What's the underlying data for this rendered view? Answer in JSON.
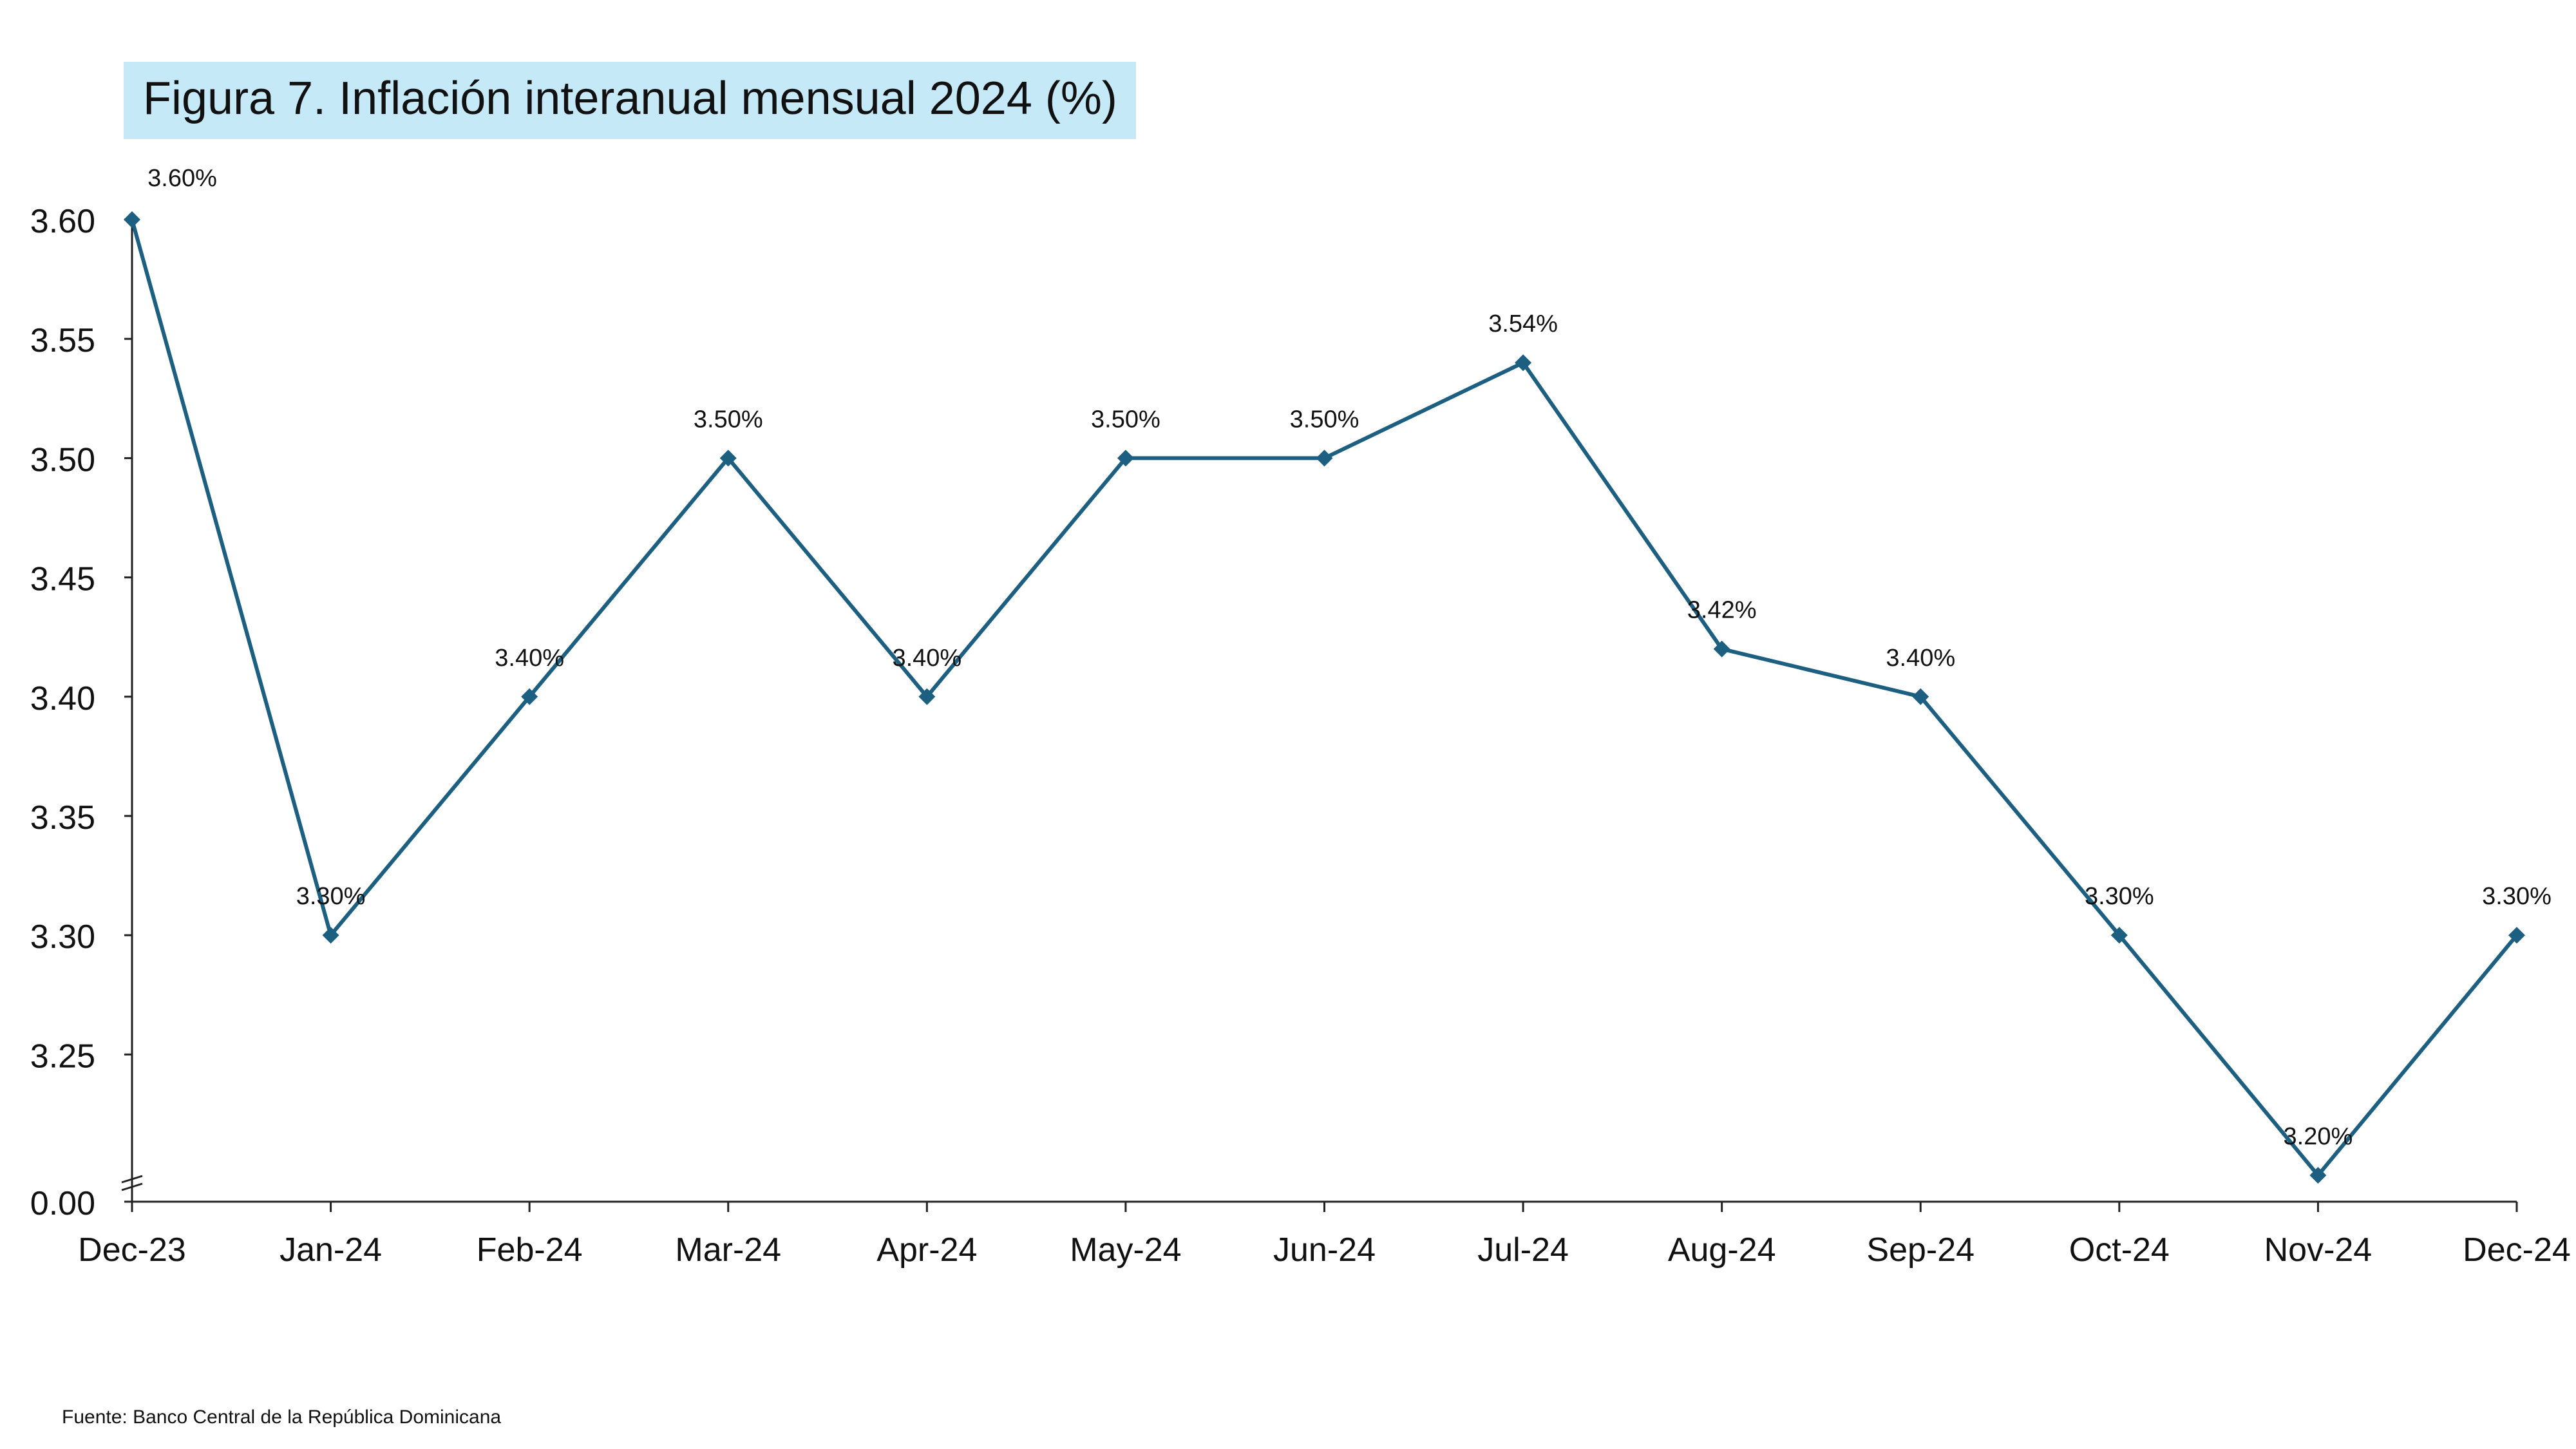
{
  "title": "Figura 7. Inflación interanual mensual 2024 (%)",
  "source": "Fuente: Banco Central de la República Dominicana",
  "colors": {
    "series": "#1d5f80",
    "axis": "#222222",
    "title_bg": "#c6e9f7"
  },
  "chart_data": {
    "type": "line",
    "title": "Figura 7. Inflación interanual mensual 2024 (%)",
    "xlabel": "",
    "ylabel": "",
    "categories": [
      "Dec-23",
      "Jan-24",
      "Feb-24",
      "Mar-24",
      "Apr-24",
      "May-24",
      "Jun-24",
      "Jul-24",
      "Aug-24",
      "Sep-24",
      "Oct-24",
      "Nov-24",
      "Dec-24"
    ],
    "series": [
      {
        "name": "",
        "values": [
          3.6,
          3.3,
          3.4,
          3.5,
          3.4,
          3.5,
          3.5,
          3.54,
          3.42,
          3.4,
          3.3,
          3.2,
          3.3
        ],
        "data_labels": [
          "3.60%",
          "3.30%",
          "3.40%",
          "3.50%",
          "3.40%",
          "3.50%",
          "3.50%",
          "3.54%",
          "3.42%",
          "3.40%",
          "3.30%",
          "3.20%",
          "3.30%"
        ]
      }
    ],
    "yticks": [
      0.0,
      3.25,
      3.3,
      3.35,
      3.4,
      3.45,
      3.5,
      3.55,
      3.6
    ],
    "ytick_labels": [
      "0.00",
      "3.25",
      "3.30",
      "3.35",
      "3.40",
      "3.45",
      "3.50",
      "3.55",
      "3.60"
    ],
    "ylim": [
      3.2,
      3.6
    ],
    "y_axis_break": true,
    "marker": "diamond",
    "grid": false,
    "legend": "none"
  }
}
